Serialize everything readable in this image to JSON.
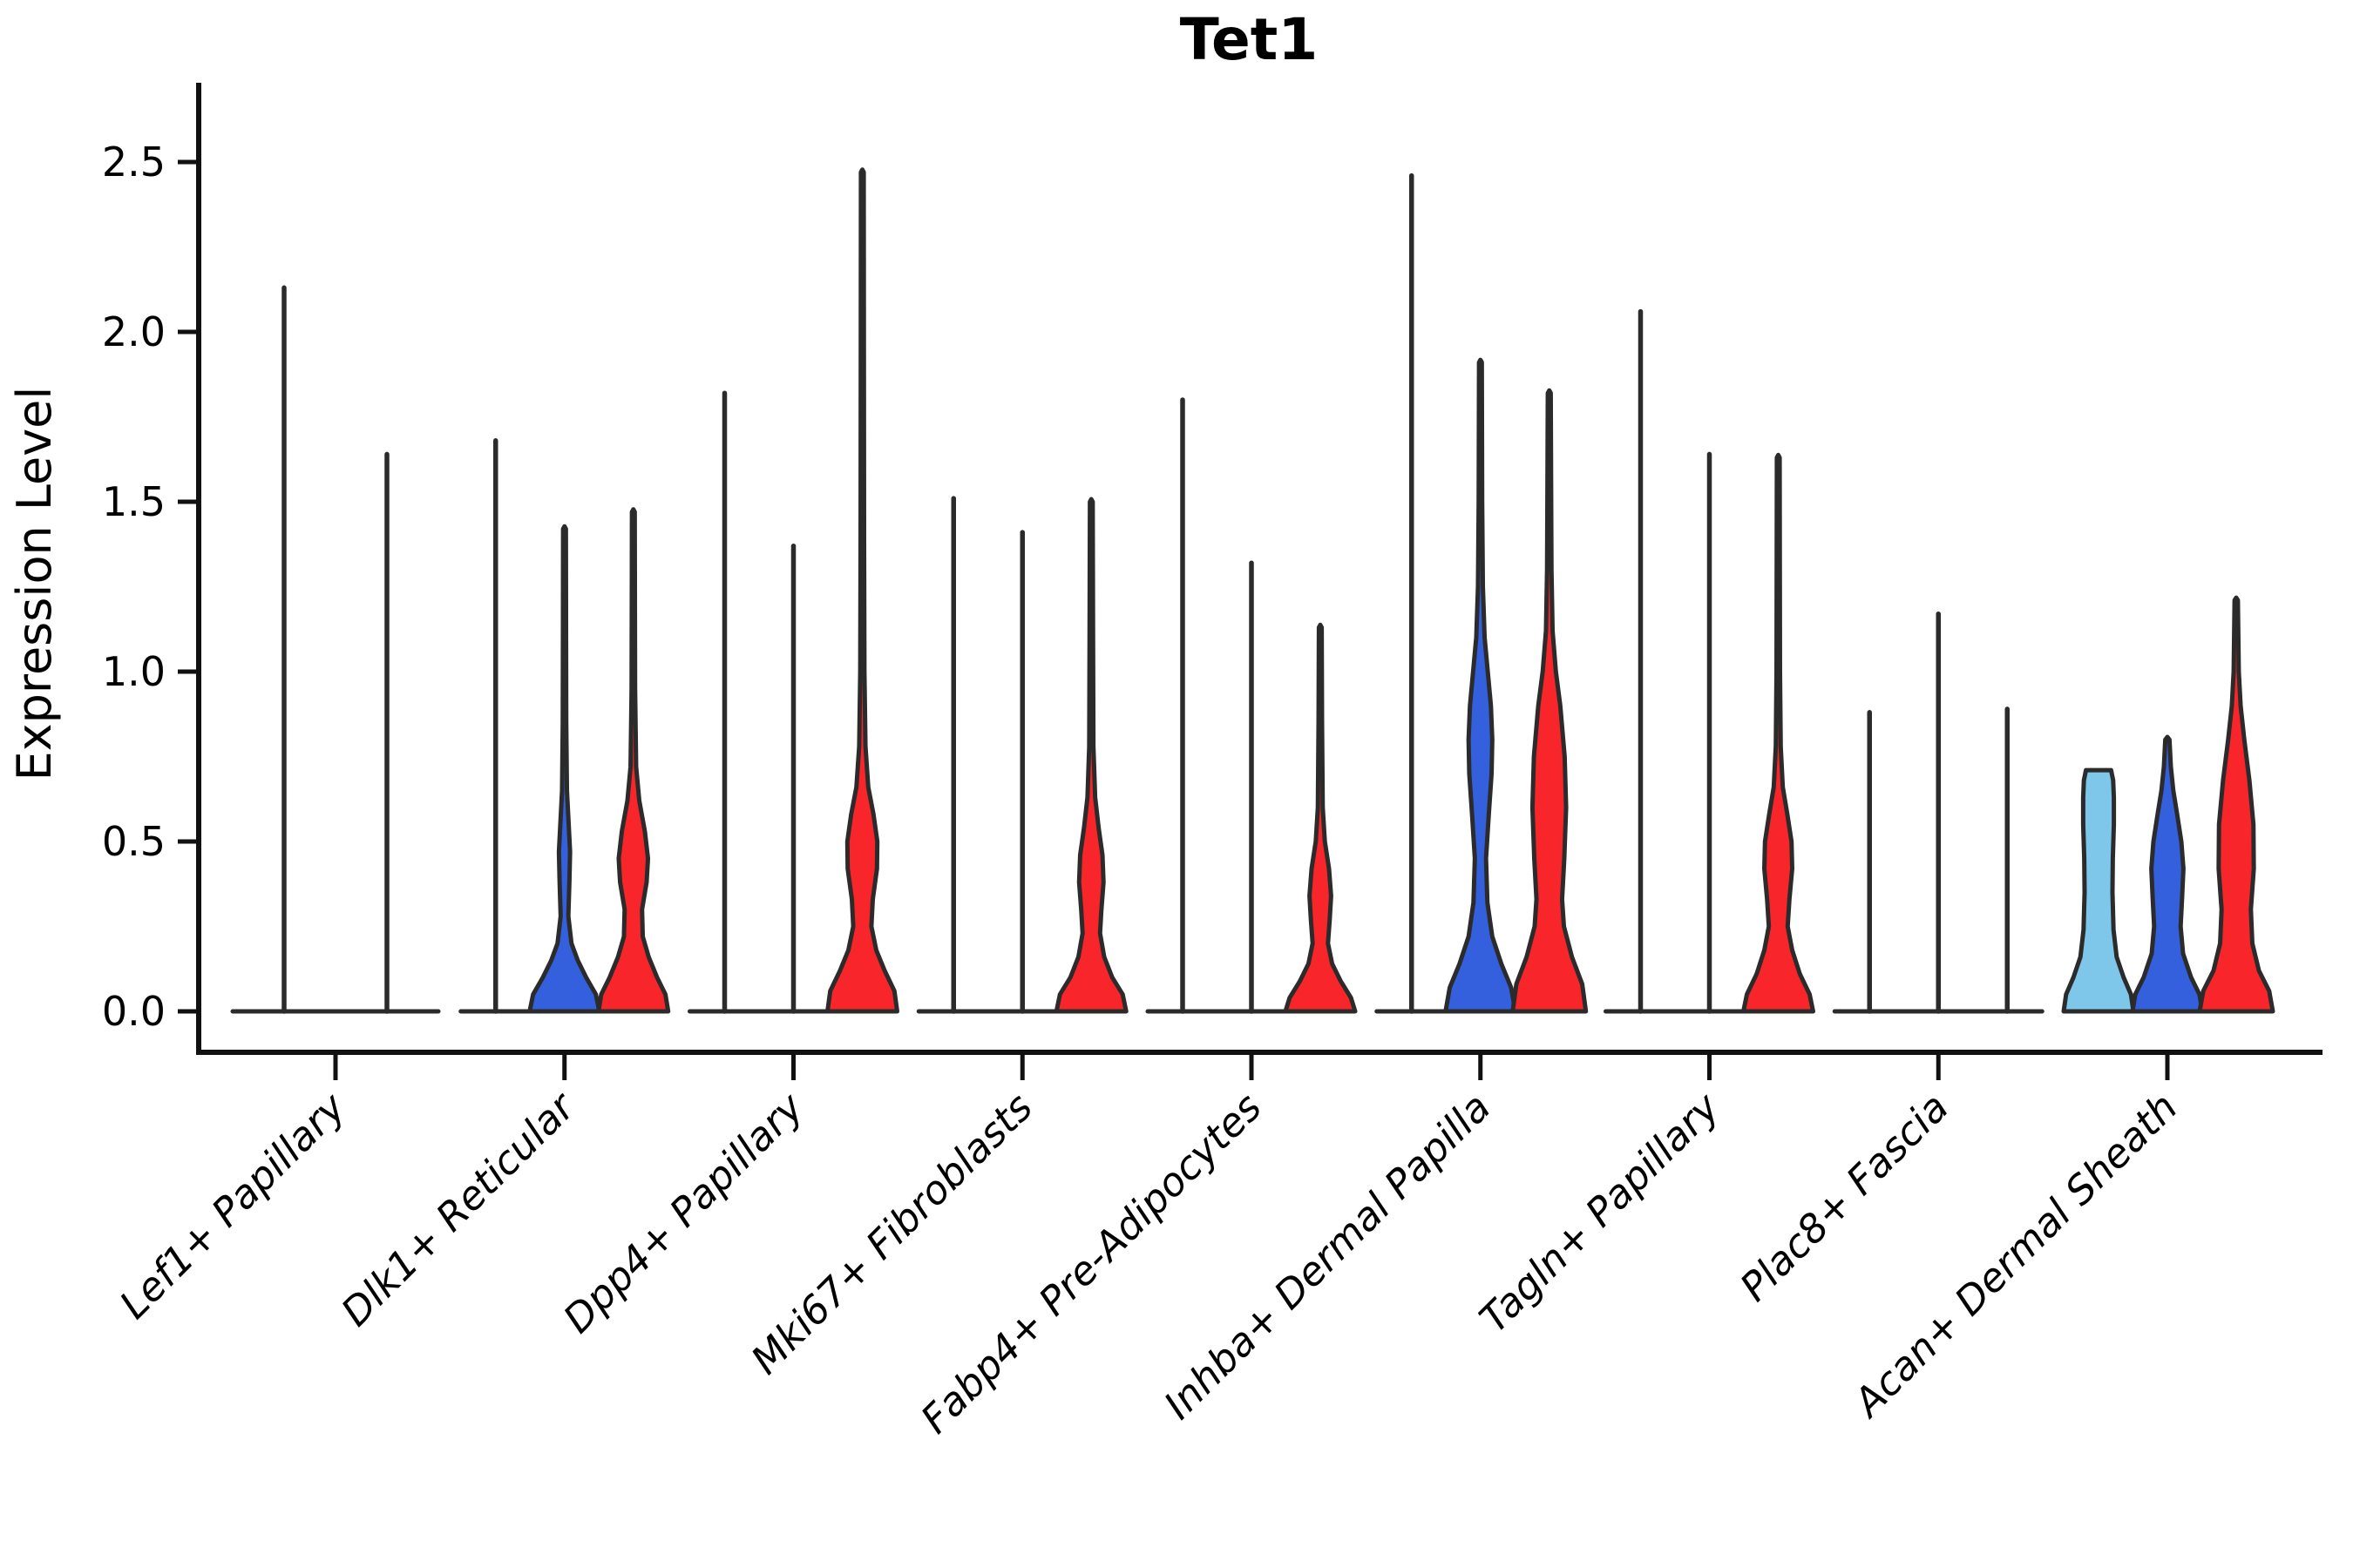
{
  "chart_data": {
    "type": "violin",
    "title": "Tet1",
    "ylabel": "Expression Level",
    "xlabel": "",
    "yticks": [
      "0.0",
      "0.5",
      "1.0",
      "1.5",
      "2.0",
      "2.5"
    ],
    "ytick_values": [
      0.0,
      0.5,
      1.0,
      1.5,
      2.0,
      2.5
    ],
    "ylim": [
      -0.12,
      2.73
    ],
    "grid": "off",
    "legend_position": "none",
    "colors": {
      "light_blue": "#7EC6EA",
      "blue": "#3560DD",
      "red": "#F8262B",
      "outline": "#2B2B2B",
      "axis": "#111111"
    },
    "categories": [
      "Lef1+ Papillary",
      "Dlk1+ Reticular",
      "Dpp4+ Papillary",
      "Mki67+ Fibroblasts",
      "Fabp4+ Pre-Adipocytes",
      "Inhba+ Dermal Papilla",
      "Tagln+ Papillary",
      "Plac8+ Fascia",
      "Acan+ Dermal Sheath"
    ],
    "groups": [
      {
        "category": "Lef1+ Papillary",
        "violins": [
          {
            "offset": -59,
            "halfwidth": 59,
            "color": null,
            "max": 2.13,
            "shape": "line"
          },
          {
            "offset": 59,
            "halfwidth": 59,
            "color": null,
            "max": 1.64,
            "shape": "line"
          }
        ]
      },
      {
        "category": "Dlk1+ Reticular",
        "violins": [
          {
            "offset": -79,
            "halfwidth": 40,
            "color": null,
            "max": 1.68,
            "shape": "line"
          },
          {
            "offset": 0,
            "halfwidth": 40,
            "color": "blue",
            "max": 1.42,
            "shape": "violin",
            "profile": [
              [
                0,
                1
              ],
              [
                0.05,
                0.9
              ],
              [
                0.1,
                0.62
              ],
              [
                0.15,
                0.38
              ],
              [
                0.2,
                0.2
              ],
              [
                0.28,
                0.11
              ],
              [
                0.38,
                0.14
              ],
              [
                0.47,
                0.16
              ],
              [
                0.55,
                0.12
              ],
              [
                0.65,
                0.07
              ],
              [
                0.85,
                0.05
              ],
              [
                1.1,
                0.045
              ],
              [
                1.42,
                0.04
              ]
            ]
          },
          {
            "offset": 79,
            "halfwidth": 40,
            "color": "red",
            "max": 1.47,
            "shape": "violin",
            "profile": [
              [
                0,
                1
              ],
              [
                0.05,
                0.92
              ],
              [
                0.1,
                0.68
              ],
              [
                0.16,
                0.44
              ],
              [
                0.22,
                0.27
              ],
              [
                0.3,
                0.25
              ],
              [
                0.38,
                0.38
              ],
              [
                0.45,
                0.42
              ],
              [
                0.53,
                0.33
              ],
              [
                0.62,
                0.17
              ],
              [
                0.72,
                0.08
              ],
              [
                0.95,
                0.05
              ],
              [
                1.2,
                0.045
              ],
              [
                1.47,
                0.04
              ]
            ]
          }
        ]
      },
      {
        "category": "Dpp4+ Papillary",
        "violins": [
          {
            "offset": -79,
            "halfwidth": 40,
            "color": null,
            "max": 1.82,
            "shape": "line"
          },
          {
            "offset": 0,
            "halfwidth": 40,
            "color": null,
            "max": 1.37,
            "shape": "line"
          },
          {
            "offset": 79,
            "halfwidth": 40,
            "color": "red",
            "max": 2.47,
            "shape": "violin",
            "profile": [
              [
                0,
                1
              ],
              [
                0.06,
                0.92
              ],
              [
                0.12,
                0.64
              ],
              [
                0.18,
                0.4
              ],
              [
                0.25,
                0.26
              ],
              [
                0.33,
                0.3
              ],
              [
                0.42,
                0.42
              ],
              [
                0.5,
                0.43
              ],
              [
                0.58,
                0.32
              ],
              [
                0.66,
                0.17
              ],
              [
                0.78,
                0.09
              ],
              [
                1.0,
                0.06
              ],
              [
                1.4,
                0.05
              ],
              [
                1.9,
                0.045
              ],
              [
                2.47,
                0.04
              ]
            ]
          }
        ]
      },
      {
        "category": "Mki67+ Fibroblasts",
        "violins": [
          {
            "offset": -79,
            "halfwidth": 40,
            "color": null,
            "max": 1.51,
            "shape": "line"
          },
          {
            "offset": 0,
            "halfwidth": 40,
            "color": null,
            "max": 1.41,
            "shape": "line"
          },
          {
            "offset": 79,
            "halfwidth": 40,
            "color": "red",
            "max": 1.5,
            "shape": "violin",
            "profile": [
              [
                0,
                1
              ],
              [
                0.05,
                0.9
              ],
              [
                0.1,
                0.6
              ],
              [
                0.16,
                0.37
              ],
              [
                0.23,
                0.25
              ],
              [
                0.3,
                0.29
              ],
              [
                0.38,
                0.35
              ],
              [
                0.46,
                0.32
              ],
              [
                0.54,
                0.21
              ],
              [
                0.63,
                0.11
              ],
              [
                0.78,
                0.06
              ],
              [
                1.1,
                0.05
              ],
              [
                1.5,
                0.04
              ]
            ]
          }
        ]
      },
      {
        "category": "Fabp4+ Pre-Adipocytes",
        "violins": [
          {
            "offset": -79,
            "halfwidth": 40,
            "color": null,
            "max": 1.8,
            "shape": "line"
          },
          {
            "offset": 0,
            "halfwidth": 40,
            "color": null,
            "max": 1.32,
            "shape": "line"
          },
          {
            "offset": 79,
            "halfwidth": 40,
            "color": "red",
            "max": 1.13,
            "shape": "violin",
            "profile": [
              [
                0,
                1
              ],
              [
                0.04,
                0.88
              ],
              [
                0.09,
                0.58
              ],
              [
                0.14,
                0.34
              ],
              [
                0.2,
                0.22
              ],
              [
                0.27,
                0.27
              ],
              [
                0.34,
                0.31
              ],
              [
                0.42,
                0.25
              ],
              [
                0.5,
                0.13
              ],
              [
                0.6,
                0.07
              ],
              [
                0.85,
                0.05
              ],
              [
                1.13,
                0.04
              ]
            ]
          }
        ]
      },
      {
        "category": "Inhba+ Dermal Papilla",
        "violins": [
          {
            "offset": -79,
            "halfwidth": 40,
            "color": null,
            "max": 2.46,
            "shape": "line"
          },
          {
            "offset": 0,
            "halfwidth": 40,
            "color": "blue",
            "max": 1.91,
            "shape": "violin",
            "profile": [
              [
                0,
                1
              ],
              [
                0.07,
                0.88
              ],
              [
                0.14,
                0.6
              ],
              [
                0.22,
                0.34
              ],
              [
                0.32,
                0.2
              ],
              [
                0.45,
                0.16
              ],
              [
                0.58,
                0.24
              ],
              [
                0.7,
                0.32
              ],
              [
                0.8,
                0.34
              ],
              [
                0.9,
                0.3
              ],
              [
                1.0,
                0.21
              ],
              [
                1.1,
                0.12
              ],
              [
                1.25,
                0.07
              ],
              [
                1.5,
                0.05
              ],
              [
                1.91,
                0.04
              ]
            ]
          },
          {
            "offset": 79,
            "halfwidth": 42,
            "color": "red",
            "max": 1.82,
            "shape": "violin",
            "profile": [
              [
                0,
                1
              ],
              [
                0.08,
                0.9
              ],
              [
                0.16,
                0.62
              ],
              [
                0.25,
                0.4
              ],
              [
                0.33,
                0.35
              ],
              [
                0.45,
                0.41
              ],
              [
                0.6,
                0.46
              ],
              [
                0.75,
                0.42
              ],
              [
                0.9,
                0.3
              ],
              [
                1.0,
                0.18
              ],
              [
                1.12,
                0.09
              ],
              [
                1.3,
                0.06
              ],
              [
                1.55,
                0.05
              ],
              [
                1.82,
                0.04
              ]
            ]
          }
        ]
      },
      {
        "category": "Tagln+ Papillary",
        "violins": [
          {
            "offset": -79,
            "halfwidth": 40,
            "color": null,
            "max": 2.06,
            "shape": "line"
          },
          {
            "offset": 0,
            "halfwidth": 40,
            "color": null,
            "max": 1.64,
            "shape": "line"
          },
          {
            "offset": 79,
            "halfwidth": 40,
            "color": "red",
            "max": 1.63,
            "shape": "violin",
            "profile": [
              [
                0,
                1
              ],
              [
                0.05,
                0.9
              ],
              [
                0.11,
                0.62
              ],
              [
                0.18,
                0.4
              ],
              [
                0.25,
                0.27
              ],
              [
                0.33,
                0.32
              ],
              [
                0.42,
                0.4
              ],
              [
                0.5,
                0.38
              ],
              [
                0.58,
                0.26
              ],
              [
                0.66,
                0.13
              ],
              [
                0.78,
                0.07
              ],
              [
                1.0,
                0.05
              ],
              [
                1.3,
                0.045
              ],
              [
                1.63,
                0.04
              ]
            ]
          }
        ]
      },
      {
        "category": "Plac8+ Fascia",
        "violins": [
          {
            "offset": -79,
            "halfwidth": 40,
            "color": null,
            "max": 0.88,
            "shape": "line"
          },
          {
            "offset": 0,
            "halfwidth": 40,
            "color": null,
            "max": 1.17,
            "shape": "line"
          },
          {
            "offset": 79,
            "halfwidth": 40,
            "color": null,
            "max": 0.89,
            "shape": "line"
          }
        ]
      },
      {
        "category": "Acan+ Dermal Sheath",
        "violins": [
          {
            "offset": -79,
            "halfwidth": 40,
            "color": "light_blue",
            "max": 0.71,
            "shape": "violin",
            "profile": [
              [
                0,
                1
              ],
              [
                0.05,
                0.93
              ],
              [
                0.1,
                0.72
              ],
              [
                0.16,
                0.52
              ],
              [
                0.24,
                0.43
              ],
              [
                0.35,
                0.4
              ],
              [
                0.45,
                0.41
              ],
              [
                0.55,
                0.44
              ],
              [
                0.63,
                0.44
              ],
              [
                0.68,
                0.42
              ],
              [
                0.71,
                0.36
              ]
            ]
          },
          {
            "offset": 0,
            "halfwidth": 40,
            "color": "blue",
            "max": 0.8,
            "shape": "violin",
            "profile": [
              [
                0,
                1
              ],
              [
                0.05,
                0.92
              ],
              [
                0.1,
                0.68
              ],
              [
                0.17,
                0.45
              ],
              [
                0.25,
                0.38
              ],
              [
                0.33,
                0.42
              ],
              [
                0.42,
                0.46
              ],
              [
                0.5,
                0.4
              ],
              [
                0.58,
                0.28
              ],
              [
                0.65,
                0.17
              ],
              [
                0.72,
                0.1
              ],
              [
                0.8,
                0.06
              ]
            ]
          },
          {
            "offset": 79,
            "halfwidth": 42,
            "color": "red",
            "max": 1.21,
            "shape": "violin",
            "profile": [
              [
                0,
                1
              ],
              [
                0.06,
                0.9
              ],
              [
                0.12,
                0.62
              ],
              [
                0.2,
                0.44
              ],
              [
                0.3,
                0.4
              ],
              [
                0.42,
                0.48
              ],
              [
                0.55,
                0.47
              ],
              [
                0.68,
                0.36
              ],
              [
                0.8,
                0.22
              ],
              [
                0.9,
                0.12
              ],
              [
                1.0,
                0.07
              ],
              [
                1.21,
                0.045
              ]
            ]
          }
        ]
      }
    ]
  }
}
